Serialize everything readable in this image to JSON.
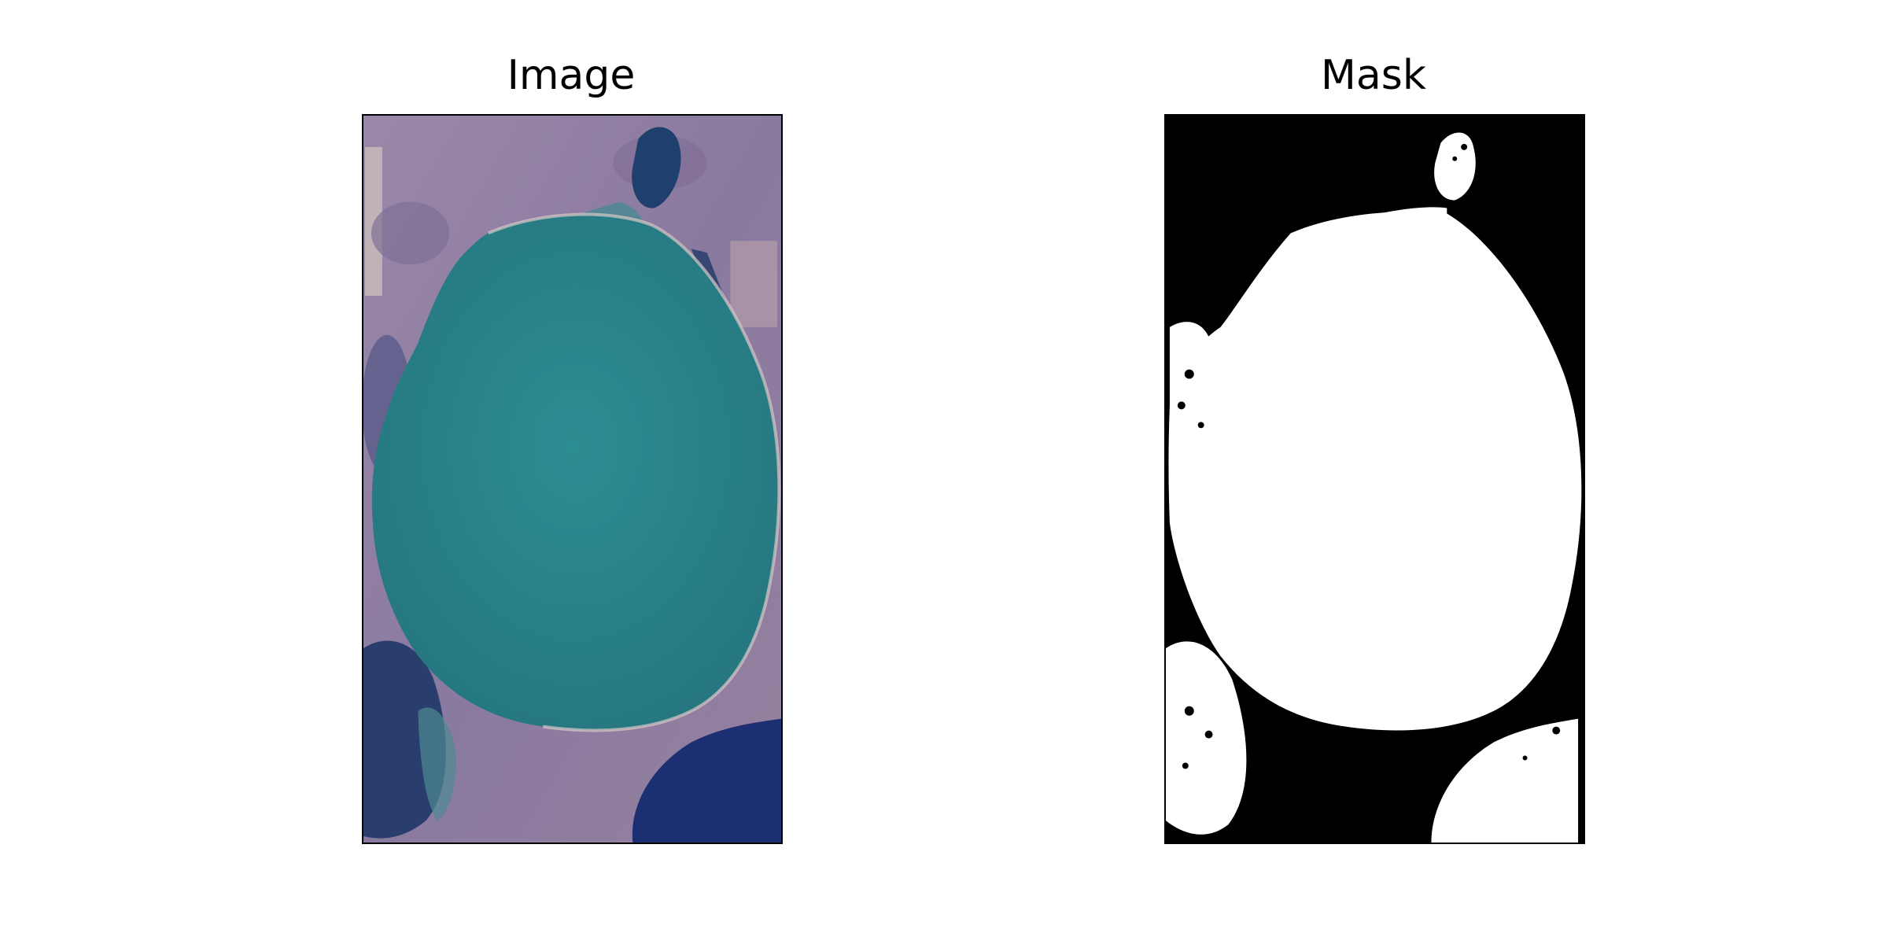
{
  "panels": {
    "image": {
      "title": "Image"
    },
    "mask": {
      "title": "Mask"
    }
  },
  "colors": {
    "lake_water": "#2a8a90",
    "land": "#8f7fa4",
    "dark_water": "#1d2f74",
    "mask_foreground": "#ffffff",
    "mask_background": "#000000"
  }
}
